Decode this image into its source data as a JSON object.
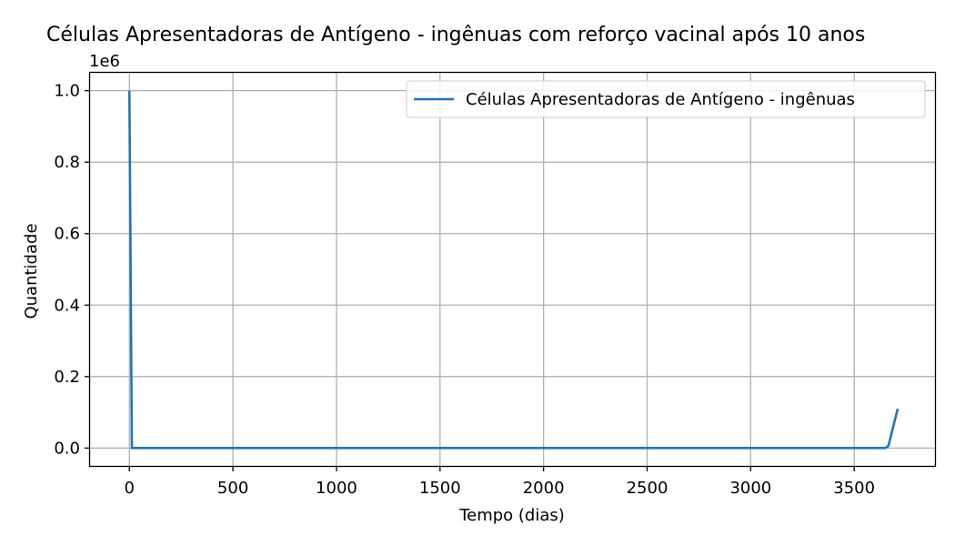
{
  "chart_data": {
    "type": "line",
    "title": "Células Apresentadoras de Antígeno - ingênuas com reforço vacinal após 10 anos",
    "xlabel": "Tempo (dias)",
    "ylabel": "Quantidade",
    "y_multiplier_label": "1e6",
    "xlim": [
      -190,
      3890
    ],
    "ylim": [
      -0.05,
      1.05
    ],
    "x_ticks": [
      0,
      500,
      1000,
      1500,
      2000,
      2500,
      3000,
      3500
    ],
    "x_tick_labels": [
      "0",
      "500",
      "1000",
      "1500",
      "2000",
      "2500",
      "3000",
      "3500"
    ],
    "y_ticks": [
      0.0,
      0.2,
      0.4,
      0.6,
      0.8,
      1.0
    ],
    "y_tick_labels": [
      "0.0",
      "0.2",
      "0.4",
      "0.6",
      "0.8",
      "1.0"
    ],
    "grid": true,
    "legend_position": "top-right",
    "series": [
      {
        "name": "Células Apresentadoras de Antígeno - ingênuas",
        "color": "#1f77b4",
        "x": [
          0,
          12,
          100,
          1000,
          2000,
          3000,
          3600,
          3650,
          3665,
          3710
        ],
        "y": [
          1.0,
          0.0,
          0.0,
          0.0,
          0.0,
          0.0,
          0.0,
          0.0,
          0.006,
          0.11
        ]
      }
    ]
  }
}
